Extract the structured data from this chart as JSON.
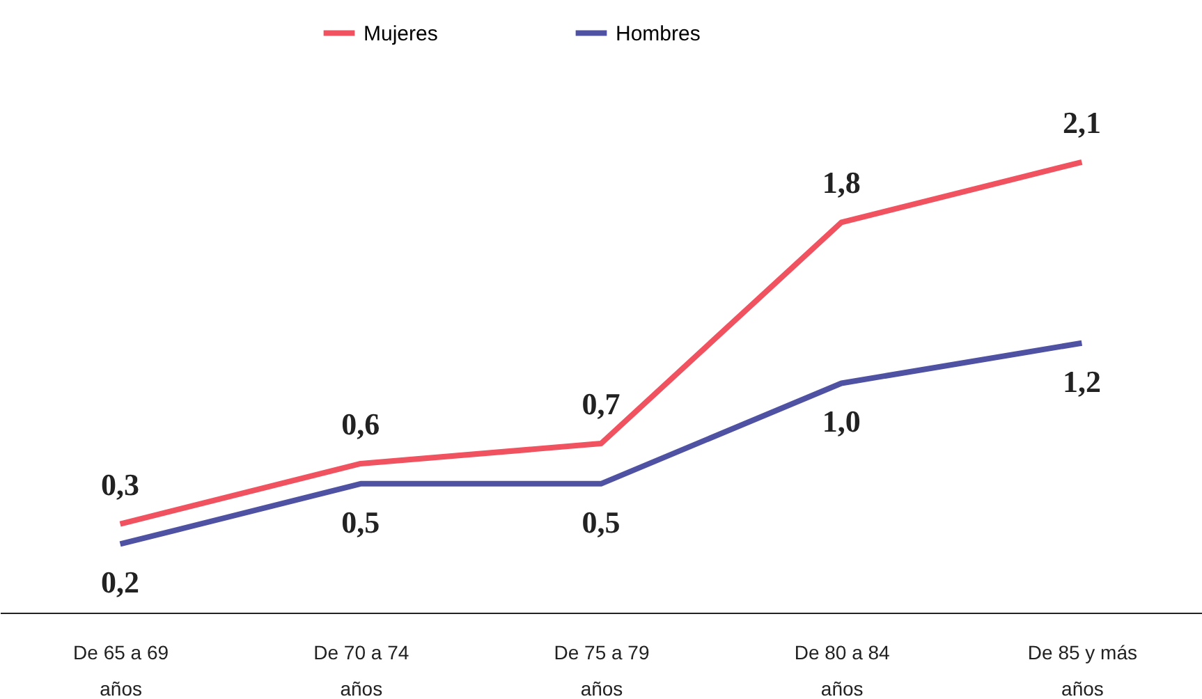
{
  "chart_data": {
    "type": "line",
    "categories": [
      "De 65 a 69 años",
      "De 70 a 74 años",
      "De 75 a 79 años",
      "De 80 a 84 años",
      "De 85 y más años"
    ],
    "series": [
      {
        "name": "Mujeres",
        "color": "#f0525f",
        "values": [
          0.3,
          0.6,
          0.7,
          1.8,
          2.1
        ],
        "value_labels": [
          "0,3",
          "0,6",
          "0,7",
          "1,8",
          "2,1"
        ]
      },
      {
        "name": "Hombres",
        "color": "#4f51a3",
        "values": [
          0.2,
          0.5,
          0.5,
          1.0,
          1.2
        ],
        "value_labels": [
          "0,2",
          "0,5",
          "0,5",
          "1,0",
          "1,2"
        ]
      }
    ],
    "legend": "top",
    "grid": false,
    "marker": "none",
    "line_style": "solid"
  }
}
